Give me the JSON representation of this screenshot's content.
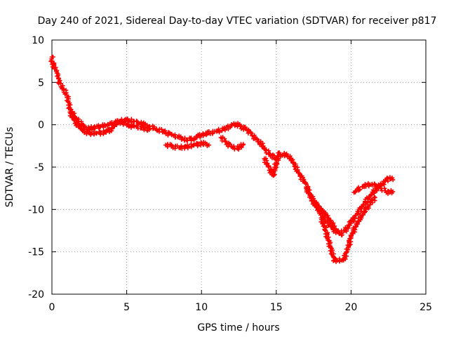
{
  "chart_data": {
    "type": "scatter",
    "title": "Day 240 of 2021, Sidereal Day-to-day VTEC variation (SDTVAR) for receiver p817",
    "xlabel": "GPS time / hours",
    "ylabel": "SDTVAR / TECUs",
    "xlim": [
      0,
      25
    ],
    "ylim": [
      -20,
      10
    ],
    "xticks": [
      "0",
      "5",
      "10",
      "15",
      "20",
      "25"
    ],
    "yticks": [
      "10",
      "5",
      "0",
      "-5",
      "-10",
      "-15",
      "-20"
    ],
    "grid": true,
    "legend": "none",
    "marker": "plus",
    "series_color": "#ff0000",
    "series": [
      {
        "name": "main",
        "points": [
          [
            0.0,
            8.0
          ],
          [
            0.0,
            7.5
          ],
          [
            0.3,
            6.3
          ],
          [
            0.4,
            5.8
          ],
          [
            0.5,
            5.0
          ],
          [
            0.6,
            4.5
          ],
          [
            0.8,
            4.2
          ],
          [
            1.0,
            3.5
          ],
          [
            1.1,
            2.8
          ],
          [
            1.2,
            2.0
          ],
          [
            1.4,
            1.3
          ],
          [
            1.6,
            0.8
          ],
          [
            1.8,
            0.4
          ],
          [
            2.0,
            0.0
          ],
          [
            2.2,
            -0.3
          ],
          [
            2.5,
            -0.5
          ],
          [
            2.8,
            -0.3
          ],
          [
            3.2,
            -0.2
          ],
          [
            3.6,
            -0.1
          ],
          [
            4.0,
            0.1
          ],
          [
            4.5,
            0.4
          ],
          [
            5.0,
            0.6
          ],
          [
            5.5,
            0.4
          ],
          [
            6.0,
            0.1
          ],
          [
            6.5,
            -0.2
          ],
          [
            7.0,
            -0.5
          ],
          [
            7.5,
            -0.8
          ],
          [
            8.0,
            -1.2
          ],
          [
            8.5,
            -1.5
          ],
          [
            9.0,
            -1.8
          ],
          [
            9.5,
            -1.6
          ],
          [
            10.0,
            -1.2
          ],
          [
            10.5,
            -1.0
          ],
          [
            11.0,
            -0.8
          ],
          [
            11.5,
            -0.5
          ],
          [
            12.0,
            -0.1
          ],
          [
            12.3,
            0.1
          ],
          [
            12.6,
            -0.2
          ],
          [
            13.0,
            -0.5
          ],
          [
            13.3,
            -1.0
          ],
          [
            13.6,
            -1.6
          ],
          [
            14.0,
            -2.3
          ],
          [
            14.3,
            -3.0
          ],
          [
            14.6,
            -3.5
          ],
          [
            15.0,
            -4.0
          ],
          [
            15.3,
            -3.7
          ],
          [
            15.6,
            -3.5
          ],
          [
            16.0,
            -4.0
          ],
          [
            16.3,
            -5.0
          ],
          [
            16.6,
            -6.0
          ],
          [
            17.0,
            -7.0
          ],
          [
            17.3,
            -8.5
          ],
          [
            17.6,
            -9.5
          ],
          [
            18.0,
            -10.5
          ],
          [
            18.4,
            -11.5
          ],
          [
            18.8,
            -12.3
          ],
          [
            19.2,
            -12.8
          ],
          [
            19.6,
            -12.5
          ],
          [
            20.0,
            -11.5
          ],
          [
            20.4,
            -10.5
          ],
          [
            20.8,
            -9.5
          ],
          [
            21.2,
            -8.5
          ],
          [
            21.6,
            -7.8
          ],
          [
            22.0,
            -7.2
          ],
          [
            22.3,
            -6.6
          ],
          [
            22.6,
            -6.2
          ],
          [
            22.8,
            -6.5
          ]
        ]
      },
      {
        "name": "branch-upper",
        "points": [
          [
            20.2,
            -8.0
          ],
          [
            20.5,
            -7.6
          ],
          [
            20.8,
            -7.3
          ],
          [
            21.1,
            -7.1
          ],
          [
            21.4,
            -7.0
          ],
          [
            21.7,
            -7.2
          ],
          [
            22.0,
            -7.5
          ],
          [
            22.3,
            -7.8
          ],
          [
            22.6,
            -8.0
          ],
          [
            22.8,
            -7.9
          ]
        ]
      },
      {
        "name": "branch-lower",
        "points": [
          [
            18.0,
            -11.0
          ],
          [
            18.3,
            -12.5
          ],
          [
            18.6,
            -14.3
          ],
          [
            18.9,
            -16.0
          ],
          [
            19.5,
            -16.0
          ],
          [
            19.8,
            -14.5
          ],
          [
            20.0,
            -13.2
          ],
          [
            20.3,
            -12.0
          ],
          [
            20.6,
            -11.0
          ],
          [
            21.0,
            -10.0
          ],
          [
            21.3,
            -9.2
          ],
          [
            21.6,
            -8.6
          ]
        ]
      },
      {
        "name": "branch-lower-right",
        "points": [
          [
            17.0,
            -7.5
          ],
          [
            17.5,
            -9.0
          ],
          [
            18.0,
            -10.0
          ],
          [
            18.5,
            -11.0
          ],
          [
            19.0,
            -12.5
          ],
          [
            19.4,
            -13.0
          ]
        ]
      },
      {
        "name": "branch-noon",
        "points": [
          [
            11.3,
            -1.5
          ],
          [
            11.6,
            -2.0
          ],
          [
            12.0,
            -2.6
          ],
          [
            12.4,
            -2.8
          ],
          [
            12.8,
            -2.3
          ]
        ]
      },
      {
        "name": "branch-dip",
        "points": [
          [
            14.2,
            -4.0
          ],
          [
            14.5,
            -5.0
          ],
          [
            14.8,
            -6.0
          ],
          [
            15.0,
            -4.5
          ],
          [
            15.2,
            -3.3
          ]
        ]
      },
      {
        "name": "branch-morning",
        "points": [
          [
            1.2,
            1.5
          ],
          [
            1.5,
            0.5
          ],
          [
            2.0,
            -0.6
          ],
          [
            2.5,
            -1.0
          ],
          [
            3.0,
            -1.0
          ],
          [
            3.5,
            -0.9
          ],
          [
            4.0,
            -0.5
          ],
          [
            4.4,
            0.5
          ],
          [
            5.0,
            0.0
          ],
          [
            5.5,
            -0.2
          ],
          [
            6.0,
            -0.4
          ],
          [
            6.5,
            -0.6
          ]
        ]
      },
      {
        "name": "branch-evening",
        "points": [
          [
            7.6,
            -2.4
          ],
          [
            8.0,
            -2.5
          ],
          [
            8.5,
            -2.7
          ],
          [
            9.0,
            -2.6
          ],
          [
            9.5,
            -2.4
          ],
          [
            10.0,
            -2.2
          ],
          [
            10.5,
            -2.4
          ]
        ]
      }
    ]
  }
}
